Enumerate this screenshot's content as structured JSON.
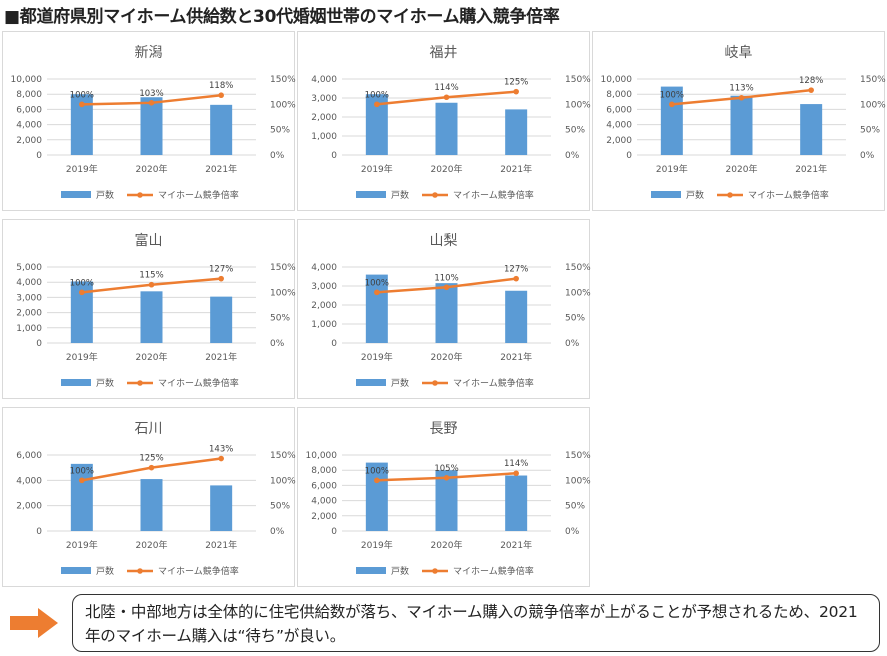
{
  "page_title": "■都道府県別マイホーム供給数と30代婚姻世帯のマイホーム購入競争倍率",
  "legend": {
    "bar_label": "戸数",
    "line_label": "マイホーム競争倍率"
  },
  "colors": {
    "bar": "#5b9bd5",
    "line": "#ed7d31",
    "arrow": "#ed7d31",
    "grid": "#d9d9d9"
  },
  "note": {
    "text": "北陸・中部地方は全体的に住宅供給数が落ち、マイホーム購入の競争倍率が上がることが予想されるため、2021年のマイホーム購入は“待ち”が良い。"
  },
  "chart_data": [
    {
      "type": "bar+line",
      "title": "新潟",
      "categories": [
        "2019年",
        "2020年",
        "2021年"
      ],
      "series": [
        {
          "name": "戸数",
          "type": "bar",
          "axis": "left",
          "values": [
            8000,
            7600,
            6600
          ]
        },
        {
          "name": "マイホーム競争倍率",
          "type": "line",
          "axis": "right",
          "values": [
            100,
            103,
            118
          ],
          "labels": [
            "100%",
            "103%",
            "118%"
          ]
        }
      ],
      "y_left": {
        "min": 0,
        "max": 10000,
        "ticks": [
          "0",
          "2,000",
          "4,000",
          "6,000",
          "8,000",
          "10,000"
        ]
      },
      "y_right": {
        "min": 0,
        "max": 150,
        "ticks": [
          "0%",
          "50%",
          "100%",
          "150%"
        ]
      }
    },
    {
      "type": "bar+line",
      "title": "福井",
      "categories": [
        "2019年",
        "2020年",
        "2021年"
      ],
      "series": [
        {
          "name": "戸数",
          "type": "bar",
          "axis": "left",
          "values": [
            3200,
            2750,
            2400
          ]
        },
        {
          "name": "マイホーム競争倍率",
          "type": "line",
          "axis": "right",
          "values": [
            100,
            114,
            125
          ],
          "labels": [
            "100%",
            "114%",
            "125%"
          ]
        }
      ],
      "y_left": {
        "min": 0,
        "max": 4000,
        "ticks": [
          "0",
          "1,000",
          "2,000",
          "3,000",
          "4,000"
        ]
      },
      "y_right": {
        "min": 0,
        "max": 150,
        "ticks": [
          "0%",
          "50%",
          "100%",
          "150%"
        ]
      }
    },
    {
      "type": "bar+line",
      "title": "岐阜",
      "categories": [
        "2019年",
        "2020年",
        "2021年"
      ],
      "series": [
        {
          "name": "戸数",
          "type": "bar",
          "axis": "left",
          "values": [
            9000,
            7800,
            6700
          ]
        },
        {
          "name": "マイホーム競争倍率",
          "type": "line",
          "axis": "right",
          "values": [
            100,
            113,
            128
          ],
          "labels": [
            "100%",
            "113%",
            "128%"
          ]
        }
      ],
      "y_left": {
        "min": 0,
        "max": 10000,
        "ticks": [
          "0",
          "2,000",
          "4,000",
          "6,000",
          "8,000",
          "10,000"
        ]
      },
      "y_right": {
        "min": 0,
        "max": 150,
        "ticks": [
          "0%",
          "50%",
          "100%",
          "150%"
        ]
      }
    },
    {
      "type": "bar+line",
      "title": "富山",
      "categories": [
        "2019年",
        "2020年",
        "2021年"
      ],
      "series": [
        {
          "name": "戸数",
          "type": "bar",
          "axis": "left",
          "values": [
            4050,
            3400,
            3050
          ]
        },
        {
          "name": "マイホーム競争倍率",
          "type": "line",
          "axis": "right",
          "values": [
            100,
            115,
            127
          ],
          "labels": [
            "100%",
            "115%",
            "127%"
          ]
        }
      ],
      "y_left": {
        "min": 0,
        "max": 5000,
        "ticks": [
          "0",
          "1,000",
          "2,000",
          "3,000",
          "4,000",
          "5,000"
        ]
      },
      "y_right": {
        "min": 0,
        "max": 150,
        "ticks": [
          "0%",
          "50%",
          "100%",
          "150%"
        ]
      }
    },
    {
      "type": "bar+line",
      "title": "山梨",
      "categories": [
        "2019年",
        "2020年",
        "2021年"
      ],
      "series": [
        {
          "name": "戸数",
          "type": "bar",
          "axis": "left",
          "values": [
            3600,
            3150,
            2750
          ]
        },
        {
          "name": "マイホーム競争倍率",
          "type": "line",
          "axis": "right",
          "values": [
            100,
            110,
            127
          ],
          "labels": [
            "100%",
            "110%",
            "127%"
          ]
        }
      ],
      "y_left": {
        "min": 0,
        "max": 4000,
        "ticks": [
          "0",
          "1,000",
          "2,000",
          "3,000",
          "4,000"
        ]
      },
      "y_right": {
        "min": 0,
        "max": 150,
        "ticks": [
          "0%",
          "50%",
          "100%",
          "150%"
        ]
      }
    },
    {
      "type": "bar+line",
      "title": "石川",
      "categories": [
        "2019年",
        "2020年",
        "2021年"
      ],
      "series": [
        {
          "name": "戸数",
          "type": "bar",
          "axis": "left",
          "values": [
            5300,
            4100,
            3600
          ]
        },
        {
          "name": "マイホーム競争倍率",
          "type": "line",
          "axis": "right",
          "values": [
            100,
            125,
            143
          ],
          "labels": [
            "100%",
            "125%",
            "143%"
          ]
        }
      ],
      "y_left": {
        "min": 0,
        "max": 6000,
        "ticks": [
          "0",
          "2,000",
          "4,000",
          "6,000"
        ]
      },
      "y_right": {
        "min": 0,
        "max": 150,
        "ticks": [
          "0%",
          "50%",
          "100%",
          "150%"
        ]
      }
    },
    {
      "type": "bar+line",
      "title": "長野",
      "categories": [
        "2019年",
        "2020年",
        "2021年"
      ],
      "series": [
        {
          "name": "戸数",
          "type": "bar",
          "axis": "left",
          "values": [
            9000,
            8000,
            7300
          ]
        },
        {
          "name": "マイホーム競争倍率",
          "type": "line",
          "axis": "right",
          "values": [
            100,
            105,
            114
          ],
          "labels": [
            "100%",
            "105%",
            "114%"
          ]
        }
      ],
      "y_left": {
        "min": 0,
        "max": 10000,
        "ticks": [
          "0",
          "2,000",
          "4,000",
          "6,000",
          "8,000",
          "10,000"
        ]
      },
      "y_right": {
        "min": 0,
        "max": 150,
        "ticks": [
          "0%",
          "50%",
          "100%",
          "150%"
        ]
      }
    }
  ]
}
